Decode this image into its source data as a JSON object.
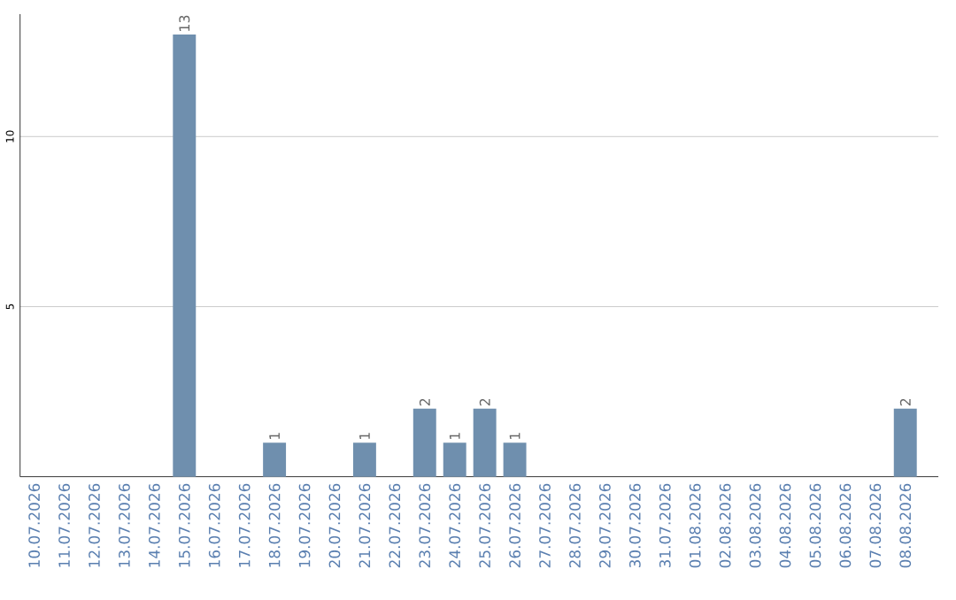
{
  "chart_data": {
    "type": "bar",
    "categories": [
      "10.07.2026",
      "11.07.2026",
      "12.07.2026",
      "13.07.2026",
      "14.07.2026",
      "15.07.2026",
      "16.07.2026",
      "17.07.2026",
      "18.07.2026",
      "19.07.2026",
      "20.07.2026",
      "21.07.2026",
      "22.07.2026",
      "23.07.2026",
      "24.07.2026",
      "25.07.2026",
      "26.07.2026",
      "27.07.2026",
      "28.07.2026",
      "29.07.2026",
      "30.07.2026",
      "31.07.2026",
      "01.08.2026",
      "02.08.2026",
      "03.08.2026",
      "04.08.2026",
      "05.08.2026",
      "06.08.2026",
      "07.08.2026",
      "08.08.2026"
    ],
    "values": [
      0,
      0,
      0,
      0,
      0,
      13,
      0,
      0,
      1,
      0,
      0,
      1,
      0,
      2,
      1,
      2,
      1,
      0,
      0,
      0,
      0,
      0,
      0,
      0,
      0,
      0,
      0,
      0,
      0,
      2
    ],
    "value_labels": [
      null,
      null,
      null,
      null,
      null,
      "13",
      null,
      null,
      "1",
      null,
      null,
      "1",
      null,
      "2",
      "1",
      "2",
      "1",
      null,
      null,
      null,
      null,
      null,
      null,
      null,
      null,
      null,
      null,
      null,
      null,
      "2"
    ],
    "color": "#6f8fae",
    "ylim": [
      0,
      13.6
    ],
    "yticks": [
      5,
      10
    ],
    "grid": "y"
  }
}
